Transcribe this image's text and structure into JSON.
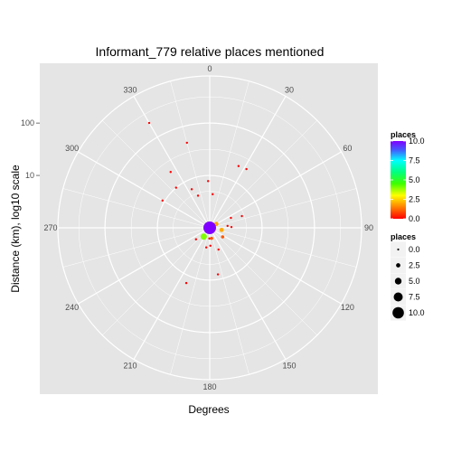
{
  "chart_data": {
    "type": "scatter",
    "coord": "polar",
    "title": "Informant_779 relative places mentioned",
    "xlabel": "Degrees",
    "ylabel": "Distance (km), log10 scale",
    "angle_ticks": [
      "0",
      "30",
      "60",
      "90",
      "120",
      "150",
      "180",
      "210",
      "240",
      "270",
      "300",
      "330"
    ],
    "radial_ticks": [
      {
        "label": "10",
        "value": 10
      },
      {
        "label": "100",
        "value": 100
      }
    ],
    "radial_range_log10": [
      0,
      2.9
    ],
    "legend": {
      "color_title": "places",
      "color_labels": [
        "10.0",
        "7.5",
        "5.0",
        "2.5",
        "0.0"
      ],
      "color_max": 10,
      "size_title": "places",
      "size_labels": [
        "0.0",
        "2.5",
        "5.0",
        "7.5",
        "10.0"
      ],
      "position": "right"
    },
    "points": [
      {
        "angle": 0,
        "distance": 1.0,
        "places": 10
      },
      {
        "angle": 272,
        "distance": 1.0,
        "places": 4
      },
      {
        "angle": 60,
        "distance": 1.4,
        "places": 2
      },
      {
        "angle": 100,
        "distance": 1.7,
        "places": 2
      },
      {
        "angle": 214,
        "distance": 1.6,
        "places": 4
      },
      {
        "angle": 170,
        "distance": 1.6,
        "places": 1
      },
      {
        "angle": 125,
        "distance": 2.0,
        "places": 1
      },
      {
        "angle": 84,
        "distance": 2.2,
        "places": 0
      },
      {
        "angle": 88,
        "distance": 2.6,
        "places": 0
      },
      {
        "angle": 65,
        "distance": 2.8,
        "places": 0
      },
      {
        "angle": 5,
        "distance": 4.4,
        "places": 0
      },
      {
        "angle": 358,
        "distance": 7.8,
        "places": 0
      },
      {
        "angle": 340,
        "distance": 4.5,
        "places": 0
      },
      {
        "angle": 335,
        "distance": 6.5,
        "places": 0
      },
      {
        "angle": 320,
        "distance": 10,
        "places": 0
      },
      {
        "angle": 300,
        "distance": 11,
        "places": 0
      },
      {
        "angle": 325,
        "distance": 20,
        "places": 0
      },
      {
        "angle": 345,
        "distance": 48,
        "places": 0
      },
      {
        "angle": 330,
        "distance": 205,
        "places": 0
      },
      {
        "angle": 25,
        "distance": 20,
        "places": 0
      },
      {
        "angle": 32,
        "distance": 21,
        "places": 0
      },
      {
        "angle": 70,
        "distance": 4.5,
        "places": 0
      },
      {
        "angle": 230,
        "distance": 2.2,
        "places": 0
      },
      {
        "angle": 190,
        "distance": 2.4,
        "places": 0
      },
      {
        "angle": 158,
        "distance": 2.8,
        "places": 0
      },
      {
        "angle": 203,
        "distance": 14,
        "places": 0
      },
      {
        "angle": 170,
        "distance": 8,
        "places": 0
      },
      {
        "angle": 178,
        "distance": 2.2,
        "places": 0
      },
      {
        "angle": 182,
        "distance": 1.6,
        "places": 0
      }
    ]
  }
}
